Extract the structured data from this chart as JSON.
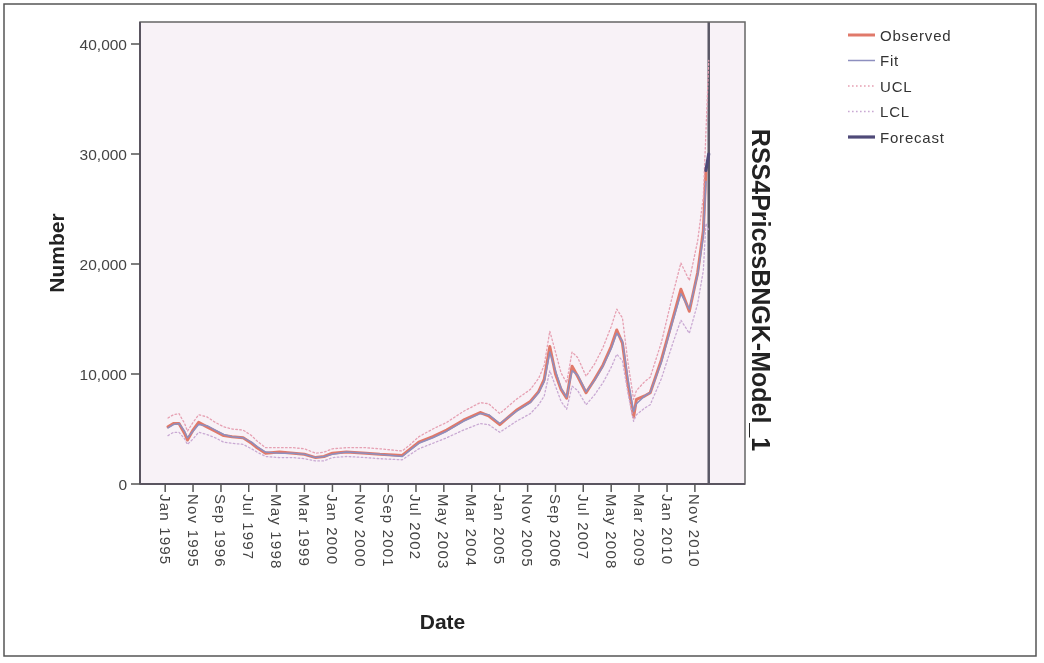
{
  "chart_data": {
    "type": "line",
    "title": "RSS4PricesBNGK-Model_1",
    "xlabel": "Date",
    "ylabel": "Number",
    "legend": "top right",
    "xlim": [
      "1994-04",
      "2012-05"
    ],
    "ylim": [
      0,
      42000
    ],
    "xticks": [
      {
        "value": "1995-01",
        "label": "Jan 1995"
      },
      {
        "value": "1995-11",
        "label": "Nov 1995"
      },
      {
        "value": "1996-09",
        "label": "Sep 1996"
      },
      {
        "value": "1997-07",
        "label": "Jul 1997"
      },
      {
        "value": "1998-05",
        "label": "May 1998"
      },
      {
        "value": "1999-03",
        "label": "Mar 1999"
      },
      {
        "value": "2000-01",
        "label": "Jan 2000"
      },
      {
        "value": "2000-11",
        "label": "Nov 2000"
      },
      {
        "value": "2001-09",
        "label": "Sep 2001"
      },
      {
        "value": "2002-07",
        "label": "Jul 2002"
      },
      {
        "value": "2003-05",
        "label": "May 2003"
      },
      {
        "value": "2004-03",
        "label": "Mar 2004"
      },
      {
        "value": "2005-01",
        "label": "Jan 2005"
      },
      {
        "value": "2005-11",
        "label": "Nov 2005"
      },
      {
        "value": "2006-09",
        "label": "Sep 2006"
      },
      {
        "value": "2007-07",
        "label": "Jul 2007"
      },
      {
        "value": "2008-05",
        "label": "May 2008"
      },
      {
        "value": "2009-03",
        "label": "Mar 2009"
      },
      {
        "value": "2010-01",
        "label": "Jan 2010"
      },
      {
        "value": "2010-11",
        "label": "Nov 2010"
      }
    ],
    "yticks": [
      0,
      {
        "value": 10000,
        "label": "10,000"
      },
      {
        "value": 20000,
        "label": "20,000"
      },
      {
        "value": 30000,
        "label": "30,000"
      },
      {
        "value": 40000,
        "label": "40,000"
      }
    ],
    "x": [
      "1995-02",
      "1995-04",
      "1995-06",
      "1995-08",
      "1995-09",
      "1995-11",
      "1996-01",
      "1996-04",
      "1996-07",
      "1996-10",
      "1997-01",
      "1997-05",
      "1997-08",
      "1997-10",
      "1998-01",
      "1998-06",
      "1998-11",
      "1999-03",
      "1999-07",
      "1999-10",
      "2000-01",
      "2000-06",
      "2001-01",
      "2001-06",
      "2002-02",
      "2002-05",
      "2002-08",
      "2003-01",
      "2003-06",
      "2003-12",
      "2004-06",
      "2004-09",
      "2005-01",
      "2005-07",
      "2005-12",
      "2006-03",
      "2006-05",
      "2006-07",
      "2006-09",
      "2006-11",
      "2007-01",
      "2007-03",
      "2007-05",
      "2007-08",
      "2007-11",
      "2008-02",
      "2008-05",
      "2008-07",
      "2008-09",
      "2008-11",
      "2009-01",
      "2009-02",
      "2009-05",
      "2009-07",
      "2009-11",
      "2010-03",
      "2010-06",
      "2010-09",
      "2010-12",
      "2011-02",
      "2011-03",
      "2011-04"
    ],
    "series": [
      {
        "name": "Observed",
        "color": "#e0796a",
        "values": [
          5200,
          5500,
          5500,
          4600,
          4000,
          4900,
          5600,
          5200,
          4800,
          4400,
          4300,
          4200,
          3700,
          3300,
          2800,
          2900,
          2800,
          2700,
          2400,
          2500,
          2800,
          2900,
          2800,
          2700,
          2600,
          3200,
          3800,
          4300,
          4900,
          5800,
          6500,
          6200,
          5400,
          6700,
          7500,
          8400,
          9500,
          12500,
          10000,
          8600,
          7800,
          10700,
          9800,
          8300,
          9500,
          10800,
          12500,
          14000,
          12800,
          9000,
          6100,
          7700,
          8000,
          8300,
          11300,
          14900,
          17700,
          15700,
          19200,
          23000,
          28500,
          null
        ]
      },
      {
        "name": "Fit",
        "color": "#8d8fbf",
        "values": [
          5100,
          5400,
          5500,
          4800,
          4200,
          4800,
          5400,
          5300,
          4900,
          4500,
          4300,
          4200,
          3800,
          3400,
          2900,
          2800,
          2800,
          2700,
          2400,
          2500,
          2700,
          2900,
          2800,
          2700,
          2500,
          3100,
          3700,
          4200,
          4800,
          5700,
          6400,
          6300,
          5500,
          6600,
          7400,
          8300,
          9300,
          12000,
          10300,
          8700,
          7900,
          10300,
          9900,
          8400,
          9400,
          10700,
          12300,
          13700,
          13000,
          9500,
          6600,
          7300,
          8000,
          8300,
          11100,
          14700,
          17300,
          15900,
          19000,
          22500,
          27500,
          null
        ]
      },
      {
        "name": "UCL",
        "color": "#e6a0b2",
        "line_style": "dotted",
        "values": [
          6000,
          6300,
          6400,
          5500,
          4800,
          5600,
          6300,
          6100,
          5600,
          5200,
          5000,
          4900,
          4400,
          3900,
          3300,
          3300,
          3300,
          3200,
          2800,
          2900,
          3200,
          3300,
          3300,
          3200,
          3000,
          3600,
          4300,
          5000,
          5600,
          6600,
          7400,
          7300,
          6400,
          7700,
          8600,
          9600,
          10800,
          13900,
          12000,
          10100,
          9200,
          12000,
          11500,
          9800,
          10900,
          12400,
          14300,
          15900,
          15100,
          11000,
          7700,
          8500,
          9300,
          9700,
          12900,
          17100,
          20100,
          18500,
          22100,
          26100,
          31900,
          38500
        ]
      },
      {
        "name": "LCL",
        "color": "#c9a9d3",
        "line_style": "dotted",
        "values": [
          4400,
          4700,
          4700,
          4100,
          3600,
          4100,
          4700,
          4500,
          4200,
          3800,
          3700,
          3600,
          3200,
          2900,
          2500,
          2400,
          2400,
          2300,
          2100,
          2100,
          2400,
          2500,
          2400,
          2300,
          2200,
          2700,
          3200,
          3700,
          4200,
          4900,
          5500,
          5400,
          4700,
          5700,
          6400,
          7200,
          8000,
          10300,
          8900,
          7500,
          6800,
          8900,
          8500,
          7200,
          8100,
          9200,
          10600,
          11800,
          11200,
          8200,
          5700,
          6300,
          6900,
          7200,
          9600,
          12700,
          14900,
          13700,
          16400,
          19400,
          23700,
          23000
        ]
      },
      {
        "name": "Forecast",
        "color": "#4f4a78",
        "x": [
          "2011-03",
          "2011-04"
        ],
        "values": [
          28500,
          30000
        ]
      }
    ],
    "ref_lines": [
      {
        "axis": "x",
        "value": "2011-04",
        "color": "#5a5866"
      }
    ]
  }
}
